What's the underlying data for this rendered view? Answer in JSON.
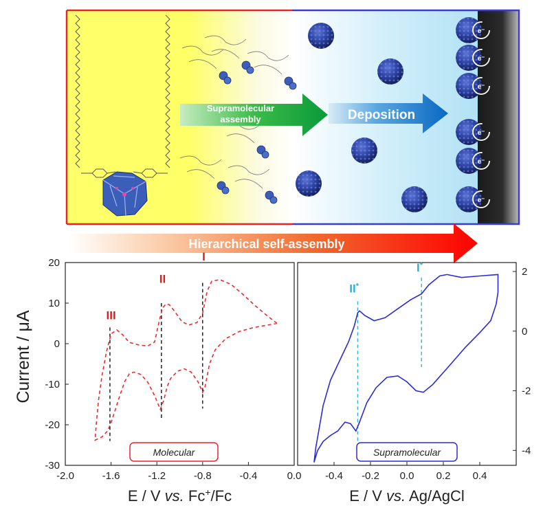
{
  "scheme": {
    "arrow_assembly_label": "Supramolecular assembly",
    "arrow_assembly_line1": "Supramolecular",
    "arrow_assembly_line2": "assembly",
    "arrow_deposition_label": "Deposition",
    "electron_label": "e⁻",
    "hierarchical_label": "Hierarchical self-assembly",
    "colors": {
      "left_frame": "#e8232a",
      "right_frame": "#3b3bd0",
      "yellow": "#ffff66",
      "light_blue": "#a8e0f5",
      "cluster": "#2b3f9e"
    }
  },
  "ylabel": "Current / μA",
  "chart_data": [
    {
      "type": "line",
      "title": "",
      "label_box": "Molecular",
      "xlabel_parts": [
        "E / V ",
        "vs.",
        " Fc",
        "+",
        "/Fc"
      ],
      "ylabel": "Current / μA",
      "xlim": [
        -2.0,
        0.0
      ],
      "ylim": [
        -30,
        20
      ],
      "x_ticks": [
        "-2.0",
        "-1.6",
        "-1.2",
        "-0.8",
        "-0.4",
        "0.0"
      ],
      "x_tick_values": [
        -2.0,
        -1.6,
        -1.2,
        -0.8,
        -0.4,
        0.0
      ],
      "y_ticks": [
        "20",
        "10",
        "0",
        "-10",
        "-20",
        "-30"
      ],
      "y_tick_values": [
        20,
        10,
        0,
        -10,
        -20,
        -30
      ],
      "y_axis_side": "left",
      "line_style": "dashed",
      "color": "#ee2a2a",
      "peak_labels": [
        {
          "text": "III",
          "x": -1.6,
          "y": 6
        },
        {
          "text": "II",
          "x": -1.15,
          "y": 15
        },
        {
          "text": "I",
          "x": -0.79,
          "y": 20.5
        }
      ],
      "marker_lines": [
        {
          "x": -1.61,
          "y_top": 4,
          "y_bottom": -24
        },
        {
          "x": -1.16,
          "y_top": 10,
          "y_bottom": -19
        },
        {
          "x": -0.8,
          "y_top": 15,
          "y_bottom": -16
        }
      ],
      "series": [
        {
          "values": [
            [
              -0.15,
              5.0
            ],
            [
              -0.25,
              7.2
            ],
            [
              -0.35,
              9.6
            ],
            [
              -0.45,
              12.2
            ],
            [
              -0.55,
              14.6
            ],
            [
              -0.65,
              15.8
            ],
            [
              -0.72,
              15.4
            ],
            [
              -0.76,
              13.0
            ],
            [
              -0.8,
              7.5
            ],
            [
              -0.85,
              5.2
            ],
            [
              -0.92,
              4.6
            ],
            [
              -0.98,
              5.4
            ],
            [
              -1.04,
              7.8
            ],
            [
              -1.09,
              9.6
            ],
            [
              -1.12,
              9.8
            ],
            [
              -1.15,
              8.8
            ],
            [
              -1.18,
              5.5
            ],
            [
              -1.22,
              0.4
            ],
            [
              -1.28,
              -0.6
            ],
            [
              -1.36,
              -0.3
            ],
            [
              -1.44,
              0.3
            ],
            [
              -1.5,
              2.2
            ],
            [
              -1.55,
              3.4
            ],
            [
              -1.6,
              2.4
            ],
            [
              -1.64,
              -2.0
            ],
            [
              -1.68,
              -8.0
            ],
            [
              -1.71,
              -14.0
            ],
            [
              -1.73,
              -20.0
            ],
            [
              -1.74,
              -23.8
            ],
            [
              -1.68,
              -23.0
            ],
            [
              -1.63,
              -21.5
            ],
            [
              -1.6,
              -19.5
            ],
            [
              -1.56,
              -16.0
            ],
            [
              -1.52,
              -12.5
            ],
            [
              -1.48,
              -9.3
            ],
            [
              -1.44,
              -7.4
            ],
            [
              -1.4,
              -7.0
            ],
            [
              -1.34,
              -7.6
            ],
            [
              -1.28,
              -9.5
            ],
            [
              -1.22,
              -12.8
            ],
            [
              -1.17,
              -16.2
            ],
            [
              -1.14,
              -14.0
            ],
            [
              -1.11,
              -10.6
            ],
            [
              -1.08,
              -8.6
            ],
            [
              -1.02,
              -6.8
            ],
            [
              -0.96,
              -6.2
            ],
            [
              -0.9,
              -7.0
            ],
            [
              -0.84,
              -9.4
            ],
            [
              -0.8,
              -12.0
            ],
            [
              -0.78,
              -10.8
            ],
            [
              -0.74,
              -5.0
            ],
            [
              -0.69,
              -1.5
            ],
            [
              -0.6,
              1.2
            ],
            [
              -0.48,
              3.0
            ],
            [
              -0.35,
              4.0
            ],
            [
              -0.15,
              5.0
            ]
          ]
        }
      ]
    },
    {
      "type": "line",
      "title": "",
      "label_box": "Supramolecular",
      "xlabel_parts": [
        "E / V ",
        "vs.",
        " Ag/AgCl"
      ],
      "ylabel": "",
      "xlim": [
        -0.6,
        0.6
      ],
      "ylim": [
        -4.5,
        2.3
      ],
      "x_ticks": [
        "-0.4",
        "-0.2",
        "0.0",
        "0.2",
        "0.4"
      ],
      "x_tick_values": [
        -0.4,
        -0.2,
        0.0,
        0.2,
        0.4
      ],
      "y_ticks": [
        "2",
        "0",
        "-2",
        "-4"
      ],
      "y_tick_values": [
        2,
        0,
        -2,
        -4
      ],
      "y_axis_side": "right",
      "line_style": "solid",
      "color": "#2a2ad8",
      "peak_labels": [
        {
          "text": "II*",
          "x": -0.29,
          "y": 1.3
        },
        {
          "text": "I*",
          "x": 0.07,
          "y": 2.0
        }
      ],
      "marker_lines": [
        {
          "x": -0.27,
          "y_top": 1.0,
          "y_bottom": -3.9
        },
        {
          "x": 0.08,
          "y_top": 1.8,
          "y_bottom": -1.2
        }
      ],
      "series": [
        {
          "values": [
            [
              0.5,
              1.3
            ],
            [
              0.5,
              1.9
            ],
            [
              0.4,
              1.85
            ],
            [
              0.3,
              1.8
            ],
            [
              0.22,
              1.9
            ],
            [
              0.18,
              1.85
            ],
            [
              0.12,
              1.55
            ],
            [
              0.08,
              1.25
            ],
            [
              0.02,
              1.05
            ],
            [
              -0.05,
              0.75
            ],
            [
              -0.12,
              0.45
            ],
            [
              -0.18,
              0.35
            ],
            [
              -0.23,
              0.52
            ],
            [
              -0.26,
              0.68
            ],
            [
              -0.27,
              0.62
            ],
            [
              -0.29,
              0.15
            ],
            [
              -0.32,
              -0.35
            ],
            [
              -0.37,
              -1.0
            ],
            [
              -0.42,
              -1.65
            ],
            [
              -0.46,
              -2.5
            ],
            [
              -0.48,
              -3.2
            ],
            [
              -0.5,
              -3.9
            ],
            [
              -0.51,
              -4.4
            ],
            [
              -0.49,
              -4.0
            ],
            [
              -0.46,
              -3.7
            ],
            [
              -0.42,
              -3.5
            ],
            [
              -0.38,
              -3.35
            ],
            [
              -0.34,
              -3.05
            ],
            [
              -0.31,
              -3.1
            ],
            [
              -0.28,
              -3.35
            ],
            [
              -0.26,
              -3.05
            ],
            [
              -0.22,
              -2.4
            ],
            [
              -0.17,
              -1.9
            ],
            [
              -0.11,
              -1.55
            ],
            [
              -0.05,
              -1.5
            ],
            [
              0.0,
              -1.7
            ],
            [
              0.05,
              -2.0
            ],
            [
              0.09,
              -2.05
            ],
            [
              0.14,
              -1.8
            ],
            [
              0.22,
              -1.25
            ],
            [
              0.32,
              -0.55
            ],
            [
              0.4,
              -0.05
            ],
            [
              0.46,
              0.35
            ],
            [
              0.49,
              0.9
            ],
            [
              0.5,
              1.3
            ]
          ]
        }
      ]
    }
  ]
}
